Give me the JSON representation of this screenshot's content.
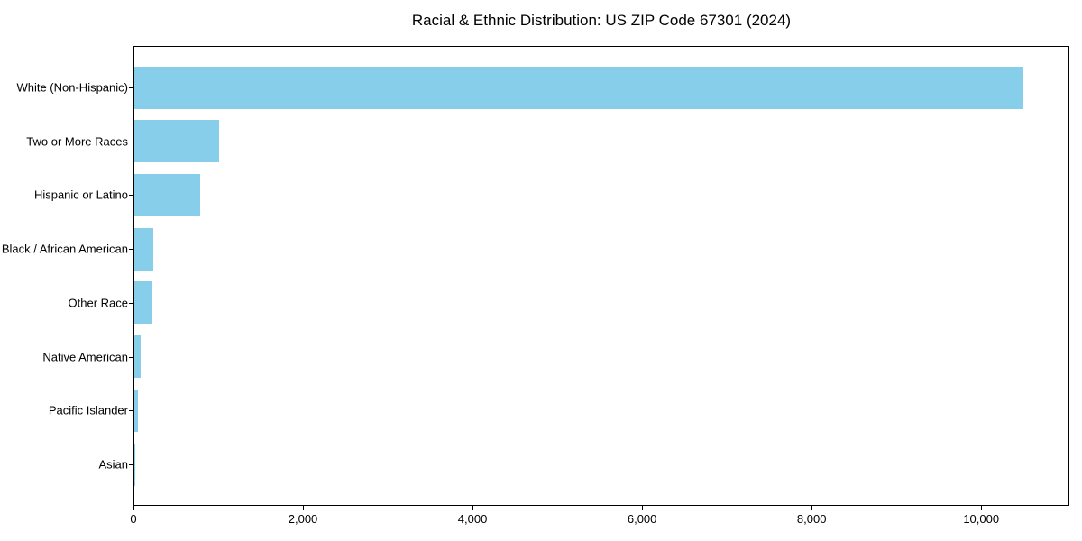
{
  "chart_data": {
    "type": "bar",
    "orientation": "horizontal",
    "title": "Racial & Ethnic Distribution: US ZIP Code 67301 (2024)",
    "categories": [
      "White (Non-Hispanic)",
      "Two or More Races",
      "Hispanic or Latino",
      "Black / African American",
      "Other Race",
      "Native American",
      "Pacific Islander",
      "Asian"
    ],
    "values": [
      10500,
      1015,
      790,
      230,
      220,
      85,
      55,
      20
    ],
    "xlabel": "",
    "ylabel": "",
    "xlim": [
      0,
      11040
    ],
    "xticks": [
      0,
      2000,
      4000,
      6000,
      8000,
      10000
    ],
    "xtick_labels": [
      "0",
      "2,000",
      "4,000",
      "6,000",
      "8,000",
      "10,000"
    ],
    "bar_color": "#87CEEB",
    "text_color": "#000000",
    "grid": false,
    "legend": null
  }
}
